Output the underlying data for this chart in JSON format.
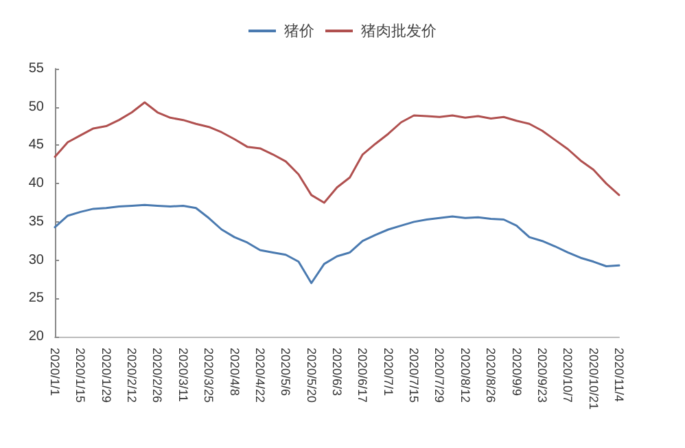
{
  "chart_data": {
    "type": "line",
    "categories": [
      "2020/1/1",
      null,
      "2020/1/15",
      null,
      "2020/1/29",
      null,
      "2020/2/12",
      null,
      "2020/2/26",
      null,
      "2020/3/11",
      null,
      "2020/3/25",
      null,
      "2020/4/8",
      null,
      "2020/4/22",
      null,
      "2020/5/6",
      null,
      "2020/5/20",
      null,
      "2020/6/3",
      null,
      "2020/6/17",
      null,
      "2020/7/1",
      null,
      "2020/7/15",
      null,
      "2020/7/29",
      null,
      "2020/8/12",
      null,
      "2020/8/26",
      null,
      "2020/9/9",
      null,
      "2020/9/23",
      null,
      "2020/10/7",
      null,
      "2020/10/21",
      null,
      "2020/11/4"
    ],
    "series": [
      {
        "name": "猪价",
        "color": "#4a7ab0",
        "values": [
          34.3,
          35.8,
          36.3,
          36.7,
          36.8,
          37,
          37.1,
          37.2,
          37.1,
          37,
          37.1,
          36.8,
          35.5,
          34,
          33,
          32.3,
          31.3,
          31,
          30.7,
          29.8,
          27,
          29.5,
          30.5,
          31,
          32.5,
          33.3,
          34,
          34.5,
          35,
          35.3,
          35.5,
          35.7,
          35.5,
          35.6,
          35.4,
          35.3,
          34.5,
          33,
          32.5,
          31.8,
          31,
          30.3,
          29.8,
          29.2,
          29.3
        ]
      },
      {
        "name": "猪肉批发价",
        "color": "#b0504f",
        "values": [
          43.5,
          45.4,
          46.3,
          47.2,
          47.5,
          48.3,
          49.3,
          50.6,
          49.3,
          48.6,
          48.3,
          47.8,
          47.4,
          46.7,
          45.8,
          44.8,
          44.6,
          43.8,
          42.9,
          41.2,
          38.5,
          37.5,
          39.5,
          40.8,
          43.8,
          45.2,
          46.5,
          48,
          48.9,
          48.8,
          48.7,
          48.9,
          48.6,
          48.8,
          48.5,
          48.7,
          48.2,
          47.8,
          46.9,
          45.7,
          44.5,
          43,
          41.8,
          40,
          38.5
        ]
      }
    ],
    "ylim": [
      20,
      55
    ],
    "yticks": [
      20,
      25,
      30,
      35,
      40,
      45,
      50,
      55
    ],
    "grid": false,
    "legend": "top",
    "marker": "none",
    "line_style": "solid"
  }
}
